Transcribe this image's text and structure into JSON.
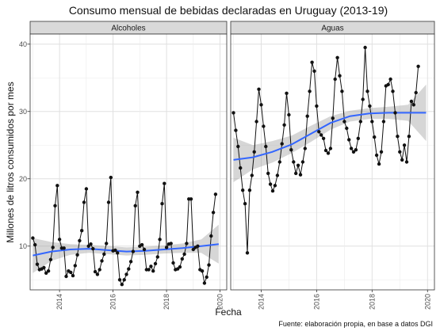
{
  "chart_data": {
    "type": "line",
    "title": "Consumo mensual de bebidas declaradas en Uruguay (2013-19)",
    "xlabel": "Fecha",
    "ylabel": "Millones de litros consumidos por mes",
    "caption": "Fuente: elaboración propia, en base a datos DGI",
    "x_ticks": [
      "2014",
      "2016",
      "2018",
      "2020"
    ],
    "y_ticks": [
      "10",
      "20",
      "30",
      "40"
    ],
    "xlim": [
      2012.9,
      2020.25
    ],
    "ylim": [
      3.5,
      41.5
    ],
    "grid": true,
    "facets": [
      {
        "name": "Alcoholes",
        "x_start": 2013.0,
        "x_step": 0.08333,
        "values": [
          11.2,
          10.2,
          7.3,
          6.5,
          6.6,
          6.8,
          6.0,
          6.3,
          8.0,
          9.8,
          16.0,
          19.0,
          11.0,
          9.7,
          9.7,
          5.5,
          6.3,
          6.1,
          5.6,
          7.1,
          8.7,
          10.8,
          12.3,
          16.5,
          18.5,
          10.0,
          10.3,
          9.6,
          6.2,
          5.8,
          6.5,
          7.8,
          8.8,
          10.4,
          16.5,
          20.2,
          9.3,
          9.4,
          9.0,
          5.0,
          4.3,
          5.0,
          5.8,
          6.6,
          7.7,
          9.2,
          16.0,
          18.0,
          10.0,
          10.2,
          9.5,
          6.5,
          6.5,
          7.0,
          6.3,
          7.4,
          8.4,
          11.0,
          16.3,
          19.3,
          9.8,
          10.3,
          10.4,
          7.5,
          6.5,
          6.6,
          6.9,
          8.1,
          8.8,
          10.4,
          17.0,
          17.0,
          9.5,
          9.8,
          10.0,
          6.5,
          6.3,
          4.5,
          5.4,
          7.2,
          11.5,
          15.0,
          17.7
        ],
        "smooth": [
          8.6,
          9.2,
          9.5,
          9.6,
          9.4,
          9.2,
          9.3,
          9.5,
          9.7,
          10.0,
          10.3
        ],
        "band_low": [
          6.0,
          7.8,
          8.7,
          9.0,
          8.8,
          8.6,
          8.7,
          8.9,
          9.0,
          9.0,
          7.4
        ],
        "band_high": [
          11.2,
          10.6,
          10.3,
          10.2,
          10.0,
          9.8,
          9.9,
          10.1,
          10.4,
          11.0,
          13.2
        ]
      },
      {
        "name": "Aguas",
        "x_start": 2013.0,
        "x_step": 0.08333,
        "values": [
          29.8,
          27.2,
          24.8,
          21.6,
          18.3,
          16.3,
          9.0,
          18.3,
          20.5,
          24.0,
          28.5,
          33.3,
          31.0,
          27.8,
          24.8,
          20.8,
          19.2,
          18.2,
          19.0,
          20.5,
          22.5,
          25.2,
          28.0,
          32.7,
          29.5,
          24.3,
          22.5,
          20.8,
          22.0,
          20.6,
          22.5,
          24.5,
          29.3,
          33.0,
          37.3,
          36.0,
          30.8,
          27.0,
          26.5,
          26.0,
          24.2,
          23.8,
          24.5,
          29.0,
          34.8,
          38.0,
          35.3,
          33.0,
          28.5,
          27.5,
          25.8,
          24.5,
          24.0,
          24.3,
          26.0,
          28.5,
          31.8,
          39.5,
          33.0,
          30.8,
          28.5,
          26.2,
          23.5,
          22.2,
          24.0,
          28.5,
          33.8,
          34.0,
          34.8,
          33.0,
          29.8,
          26.3,
          24.0,
          22.8,
          25.0,
          22.5,
          26.3,
          31.5,
          31.0,
          32.8,
          36.7
        ],
        "smooth": [
          22.8,
          23.2,
          24.0,
          25.1,
          26.7,
          28.3,
          29.3,
          29.7,
          29.8,
          29.8,
          29.8
        ],
        "band_low": [
          19.5,
          21.4,
          22.4,
          23.8,
          25.5,
          27.3,
          28.5,
          28.9,
          28.9,
          28.6,
          25.6
        ],
        "band_high": [
          26.1,
          25.0,
          25.6,
          26.4,
          27.9,
          29.3,
          30.1,
          30.5,
          30.7,
          31.0,
          34.0
        ]
      }
    ],
    "smooth_x": [
      2013.0,
      2013.7,
      2014.4,
      2015.1,
      2015.8,
      2016.5,
      2017.2,
      2017.9,
      2018.6,
      2019.3,
      2019.95
    ],
    "colors": {
      "points": "#111111",
      "line": "#111111",
      "smooth": "#3366ff",
      "band": "#999999",
      "panel": "#ffffff",
      "panel_border": "#333333",
      "grid": "#ebebeb",
      "strip": "#d9d9d9"
    }
  }
}
